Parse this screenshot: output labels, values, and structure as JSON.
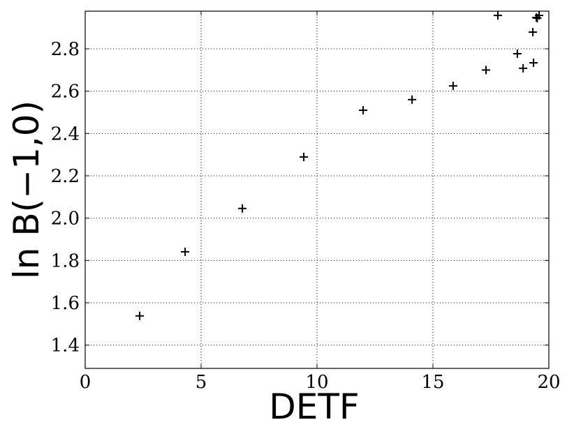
{
  "chart_data": {
    "type": "scatter",
    "x_label": "DETF",
    "y_label": "ln B(−1,0)",
    "series": [
      {
        "color": "#000000",
        "marker": "+",
        "x": [
          2.35,
          4.31,
          6.78,
          9.43,
          11.99,
          14.1,
          15.87,
          17.29,
          17.8,
          18.64,
          18.89,
          19.34,
          19.31,
          19.46,
          19.58,
          19.5
        ],
        "values": [
          1.538,
          1.841,
          2.046,
          2.289,
          2.51,
          2.56,
          2.625,
          2.7,
          2.958,
          2.777,
          2.708,
          2.734,
          2.879,
          2.948,
          2.958,
          2.945
        ]
      }
    ],
    "xlim": [
      0,
      20
    ],
    "xticks": [
      0,
      5,
      10,
      15,
      20
    ],
    "ylim": [
      1.29,
      2.978
    ],
    "yticks": [
      1.4,
      1.6,
      1.8,
      {
        "value": 2.0,
        "label": "2.0"
      },
      2.2,
      2.4,
      2.6,
      2.8
    ],
    "grid": true
  }
}
